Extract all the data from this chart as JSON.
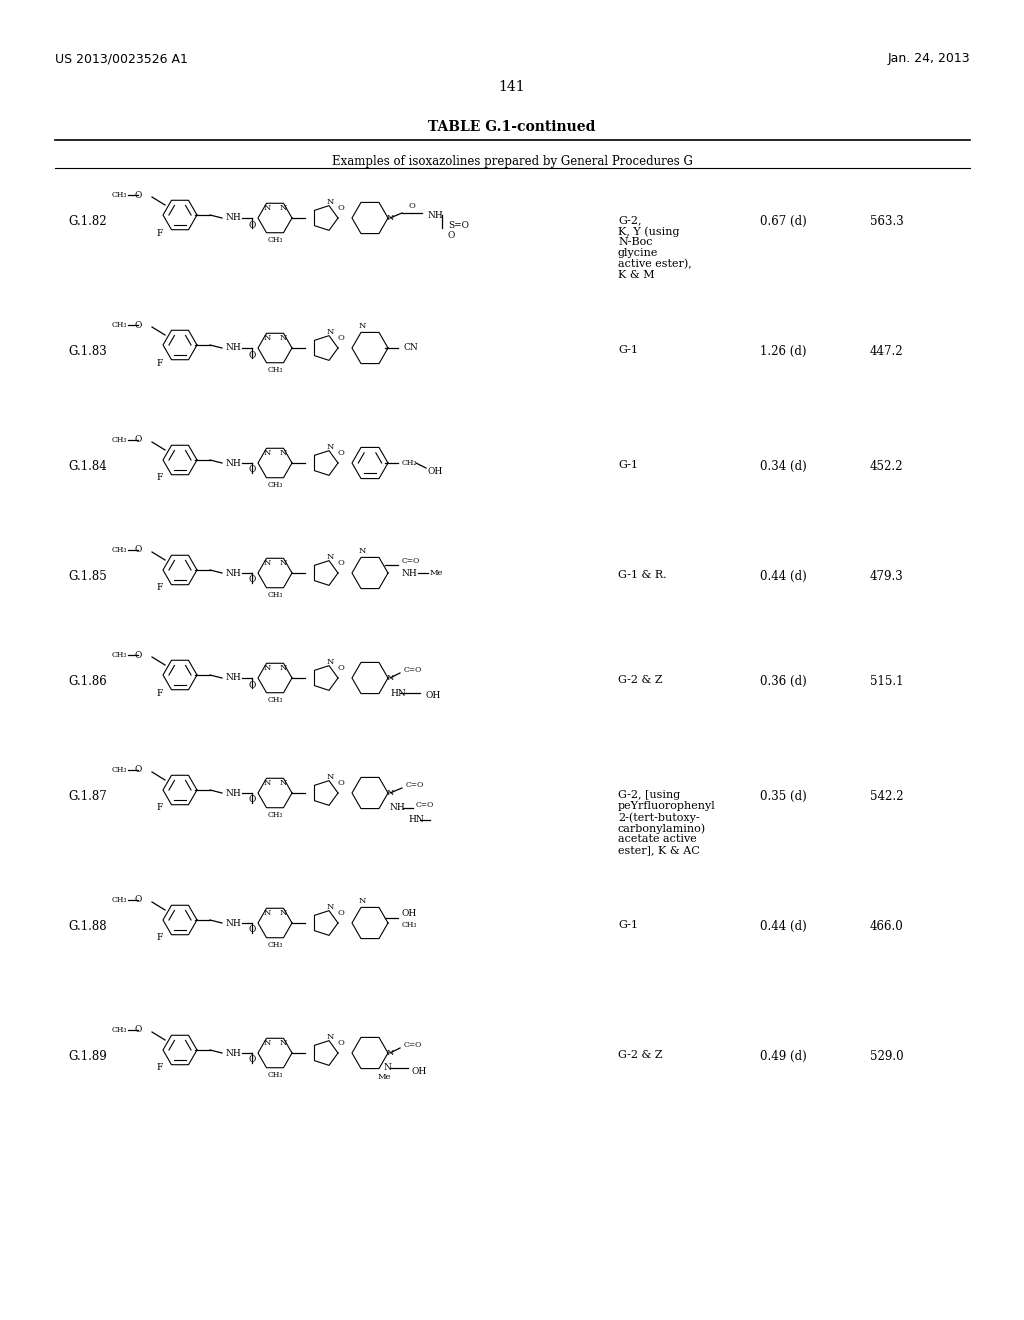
{
  "page_number": "141",
  "left_header": "US 2013/0023526 A1",
  "right_header": "Jan. 24, 2013",
  "table_title": "TABLE G.1-continued",
  "table_subtitle": "Examples of isoxazolines prepared by General Procedures G",
  "background_color": "#ffffff",
  "rows": [
    {
      "id": "G.1.82",
      "procedure": "G-2,\nK, Y (using\nN-Boc\nglycine\nactive ester),\nK & M",
      "rt": "0.67 (d)",
      "ms": "563.3"
    },
    {
      "id": "G.1.83",
      "procedure": "G-1",
      "rt": "1.26 (d)",
      "ms": "447.2"
    },
    {
      "id": "G.1.84",
      "procedure": "G-1",
      "rt": "0.34 (d)",
      "ms": "452.2"
    },
    {
      "id": "G.1.85",
      "procedure": "G-1 & R.",
      "rt": "0.44 (d)",
      "ms": "479.3"
    },
    {
      "id": "G.1.86",
      "procedure": "G-2 & Z",
      "rt": "0.36 (d)",
      "ms": "515.1"
    },
    {
      "id": "G.1.87",
      "procedure": "G-2, [using\npeYrfluorophenyl\n2-(tert-butoxy-\ncarbonylamino)\nacetate active\nester], K & AC",
      "rt": "0.35 (d)",
      "ms": "542.2"
    },
    {
      "id": "G.1.88",
      "procedure": "G-1",
      "rt": "0.44 (d)",
      "ms": "466.0"
    },
    {
      "id": "G.1.89",
      "procedure": "G-2 & Z",
      "rt": "0.49 (d)",
      "ms": "529.0"
    }
  ]
}
